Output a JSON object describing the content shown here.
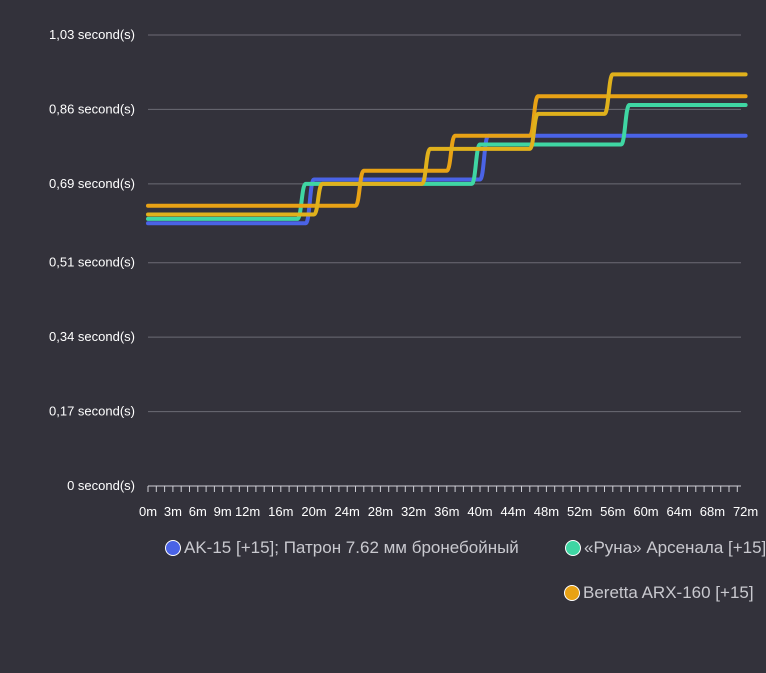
{
  "chart_data": {
    "type": "line",
    "y_ticks": [
      {
        "value": 0,
        "label": "0 second(s)"
      },
      {
        "value": 0.17,
        "label": "0,17 second(s)"
      },
      {
        "value": 0.34,
        "label": "0,34 second(s)"
      },
      {
        "value": 0.51,
        "label": "0,51 second(s)"
      },
      {
        "value": 0.69,
        "label": "0,69 second(s)"
      },
      {
        "value": 0.86,
        "label": "0,86 second(s)"
      },
      {
        "value": 1.03,
        "label": "1,03 second(s)"
      }
    ],
    "x_ticks": [
      {
        "value": 0,
        "label": "0m"
      },
      {
        "value": 3,
        "label": "3m"
      },
      {
        "value": 6,
        "label": "6m"
      },
      {
        "value": 9,
        "label": "9m"
      },
      {
        "value": 12,
        "label": "12m"
      },
      {
        "value": 16,
        "label": "16m"
      },
      {
        "value": 20,
        "label": "20m"
      },
      {
        "value": 24,
        "label": "24m"
      },
      {
        "value": 28,
        "label": "28m"
      },
      {
        "value": 32,
        "label": "32m"
      },
      {
        "value": 36,
        "label": "36m"
      },
      {
        "value": 40,
        "label": "40m"
      },
      {
        "value": 44,
        "label": "44m"
      },
      {
        "value": 48,
        "label": "48m"
      },
      {
        "value": 52,
        "label": "52m"
      },
      {
        "value": 56,
        "label": "56m"
      },
      {
        "value": 60,
        "label": "60m"
      },
      {
        "value": 64,
        "label": "64m"
      },
      {
        "value": 68,
        "label": "68m"
      },
      {
        "value": 72,
        "label": "72m"
      }
    ],
    "xlim": [
      0,
      72
    ],
    "ylim": [
      0,
      1.03
    ],
    "grid": true,
    "legend_position": "bottom",
    "series": [
      {
        "name": "AK-15 [+15]; Патрон 7.62 мм бронебойный",
        "color": "#4a63e6",
        "points": [
          [
            0,
            0.6
          ],
          [
            19,
            0.6
          ],
          [
            20,
            0.7
          ],
          [
            40,
            0.7
          ],
          [
            41,
            0.8
          ],
          [
            72,
            0.8
          ]
        ]
      },
      {
        "name": "«Руна» Арсенала [+15]",
        "color": "#3fd6a3",
        "points": [
          [
            0,
            0.61
          ],
          [
            18,
            0.61
          ],
          [
            19,
            0.69
          ],
          [
            39,
            0.69
          ],
          [
            40,
            0.78
          ],
          [
            57,
            0.78
          ],
          [
            58,
            0.87
          ],
          [
            72,
            0.87
          ]
        ]
      },
      {
        "name": "Beretta ARX-160 [+15]",
        "color": "#e8a215",
        "points": [
          [
            0,
            0.64
          ],
          [
            25,
            0.64
          ],
          [
            26,
            0.72
          ],
          [
            36,
            0.72
          ],
          [
            37,
            0.8
          ],
          [
            46,
            0.8
          ],
          [
            47,
            0.89
          ],
          [
            72,
            0.89
          ]
        ]
      },
      {
        "name": "",
        "color": "#e0b11c",
        "points": [
          [
            0,
            0.62
          ],
          [
            20,
            0.62
          ],
          [
            21,
            0.69
          ],
          [
            33,
            0.69
          ],
          [
            34,
            0.77
          ],
          [
            46,
            0.77
          ],
          [
            47,
            0.85
          ],
          [
            55,
            0.85
          ],
          [
            56,
            0.94
          ],
          [
            72,
            0.94
          ]
        ]
      }
    ],
    "legend": [
      {
        "label": "AK-15 [+15]; Патрон 7.62 мм бронебойный",
        "color": "#4a63e6"
      },
      {
        "label": "«Руна» Арсенала [+15]",
        "color": "#3fd6a3"
      },
      {
        "label": "Beretta ARX-160 [+15]",
        "color": "#e8a215"
      }
    ]
  }
}
